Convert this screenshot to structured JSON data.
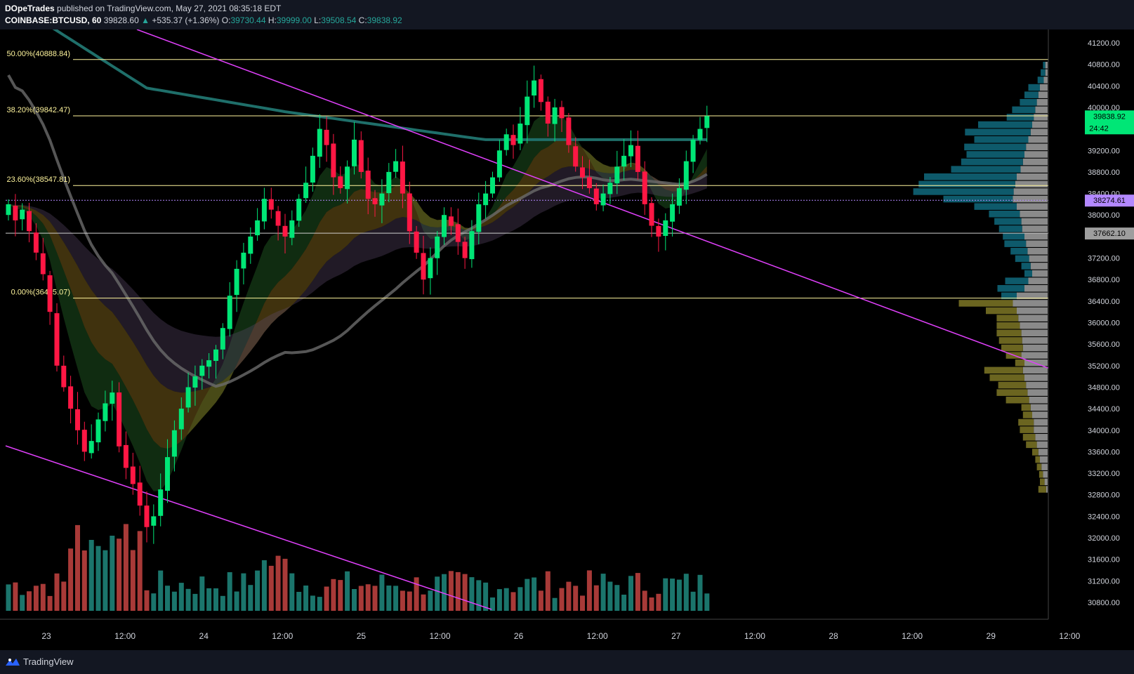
{
  "header": {
    "author": "DOpeTrades",
    "published": "published on TradingView.com, May 27, 2021 08:35:18 EDT",
    "symbol": "COINBASE:BTCUSD, 60",
    "last": "39828.60",
    "change": "+535.37 (+1.36%)",
    "o_label": "O:",
    "o": "39730.44",
    "h_label": "H:",
    "h": "39999.00",
    "l_label": "L:",
    "l": "39508.54",
    "c_label": "C:",
    "c": "39838.92"
  },
  "footer": {
    "brand": "TradingView"
  },
  "colors": {
    "up": "#00e676",
    "down": "#ff1744",
    "vol_up": "#26a69a",
    "vol_down": "#ef5350",
    "fib": "#fff59d",
    "trend": "#e040fb",
    "ema_teal": "#1f6f6a",
    "ema_grey": "#6b6b6b",
    "vp_up": "#0e5a6b",
    "vp_down": "#8a8a8a",
    "vp_low": "#6b6520",
    "price_tag": "#00e676",
    "poc_tag": "#b388ff"
  },
  "chart_data": {
    "type": "candlestick",
    "symbol": "COINBASE:BTCUSD",
    "interval": "60",
    "y_axis_ticks": [
      "41200.00",
      "40800.00",
      "40400.00",
      "40000.00",
      "39600.00",
      "39200.00",
      "38800.00",
      "38400.00",
      "38000.00",
      "37600.00",
      "37200.00",
      "36800.00",
      "36400.00",
      "36000.00",
      "35600.00",
      "35200.00",
      "34800.00",
      "34400.00",
      "34000.00",
      "33600.00",
      "33200.00",
      "32800.00",
      "32400.00",
      "32000.00",
      "31600.00",
      "31200.00",
      "30800.00"
    ],
    "x_axis_ticks": [
      "23",
      "12:00",
      "24",
      "12:00",
      "25",
      "12:00",
      "26",
      "12:00",
      "27",
      "12:00",
      "28",
      "12:00",
      "29",
      "12:00"
    ],
    "ylim": [
      30700,
      41550
    ],
    "fib_levels": [
      {
        "label": "50.00%(40888.84)",
        "value": 40888.84
      },
      {
        "label": "38.20%(39842.47)",
        "value": 39842.47
      },
      {
        "label": "23.60%(38547.81)",
        "value": 38547.81
      },
      {
        "label": "0.00%(36455.07)",
        "value": 36455.07
      }
    ],
    "price_tags": [
      {
        "value": 39838.92,
        "label": "39838.92",
        "countdown": "24:42"
      },
      {
        "value": 38274.61,
        "label": "38274.61"
      },
      {
        "value": 37662.1,
        "label": "37662.10"
      }
    ],
    "close_series": [
      38200,
      37900,
      38100,
      37700,
      37300,
      36900,
      36200,
      35200,
      34800,
      34400,
      34000,
      33600,
      33800,
      34200,
      34500,
      34700,
      33700,
      33300,
      33000,
      32600,
      32200,
      32400,
      32900,
      33500,
      34000,
      34400,
      34800,
      35000,
      35200,
      35300,
      35500,
      35900,
      36500,
      37000,
      37300,
      37600,
      37900,
      38300,
      38100,
      37800,
      37600,
      37900,
      38300,
      38600,
      39100,
      39600,
      39300,
      38700,
      38500,
      38900,
      39400,
      38800,
      38300,
      38200,
      38400,
      38800,
      39000,
      38400,
      37700,
      37300,
      36800,
      37200,
      37600,
      38000,
      37800,
      37500,
      37200,
      37700,
      38200,
      38400,
      38700,
      39200,
      39500,
      39300,
      39700,
      40200,
      40500,
      40100,
      39700,
      40000,
      39800,
      39300,
      38900,
      38700,
      38500,
      38200,
      38400,
      38600,
      38900,
      39100,
      39300,
      38800,
      38200,
      37800,
      37600,
      37900,
      38200,
      38500,
      39000,
      39400,
      39600,
      39838.92
    ],
    "volume_profile": {
      "rows_from_top": [
        [
          3,
          3,
          0
        ],
        [
          6,
          3,
          0
        ],
        [
          8,
          5,
          0
        ],
        [
          15,
          10,
          0
        ],
        [
          18,
          12,
          0
        ],
        [
          22,
          14,
          0
        ],
        [
          30,
          16,
          0
        ],
        [
          35,
          18,
          0
        ],
        [
          70,
          20,
          0
        ],
        [
          85,
          22,
          0
        ],
        [
          70,
          25,
          0
        ],
        [
          80,
          28,
          0
        ],
        [
          75,
          30,
          0
        ],
        [
          80,
          32,
          0
        ],
        [
          90,
          35,
          0
        ],
        [
          120,
          40,
          0
        ],
        [
          125,
          42,
          0
        ],
        [
          130,
          44,
          0
        ],
        [
          90,
          45,
          0
        ],
        [
          55,
          40,
          0
        ],
        [
          40,
          36,
          0
        ],
        [
          35,
          34,
          0
        ],
        [
          30,
          33,
          0
        ],
        [
          28,
          30,
          0
        ],
        [
          28,
          28,
          0
        ],
        [
          22,
          26,
          0
        ],
        [
          18,
          24,
          0
        ],
        [
          12,
          22,
          0
        ],
        [
          10,
          20,
          0
        ],
        [
          30,
          25,
          0
        ],
        [
          35,
          30,
          0
        ],
        [
          20,
          40,
          0
        ],
        [
          0,
          45,
          70
        ],
        [
          0,
          40,
          40
        ],
        [
          0,
          38,
          28
        ],
        [
          0,
          36,
          30
        ],
        [
          0,
          34,
          32
        ],
        [
          0,
          33,
          30
        ],
        [
          0,
          32,
          28
        ],
        [
          0,
          34,
          20
        ],
        [
          0,
          30,
          12
        ],
        [
          0,
          32,
          50
        ],
        [
          0,
          30,
          45
        ],
        [
          0,
          28,
          36
        ],
        [
          0,
          26,
          40
        ],
        [
          0,
          24,
          30
        ],
        [
          0,
          22,
          12
        ],
        [
          0,
          20,
          12
        ],
        [
          0,
          18,
          20
        ],
        [
          0,
          18,
          18
        ],
        [
          0,
          16,
          16
        ],
        [
          0,
          14,
          14
        ],
        [
          0,
          12,
          8
        ],
        [
          0,
          10,
          6
        ],
        [
          0,
          8,
          6
        ],
        [
          0,
          6,
          5
        ],
        [
          0,
          4,
          6
        ],
        [
          0,
          2,
          10
        ]
      ]
    },
    "trendlines": "two descending resistance/support lines (magenta)",
    "grid": false
  }
}
